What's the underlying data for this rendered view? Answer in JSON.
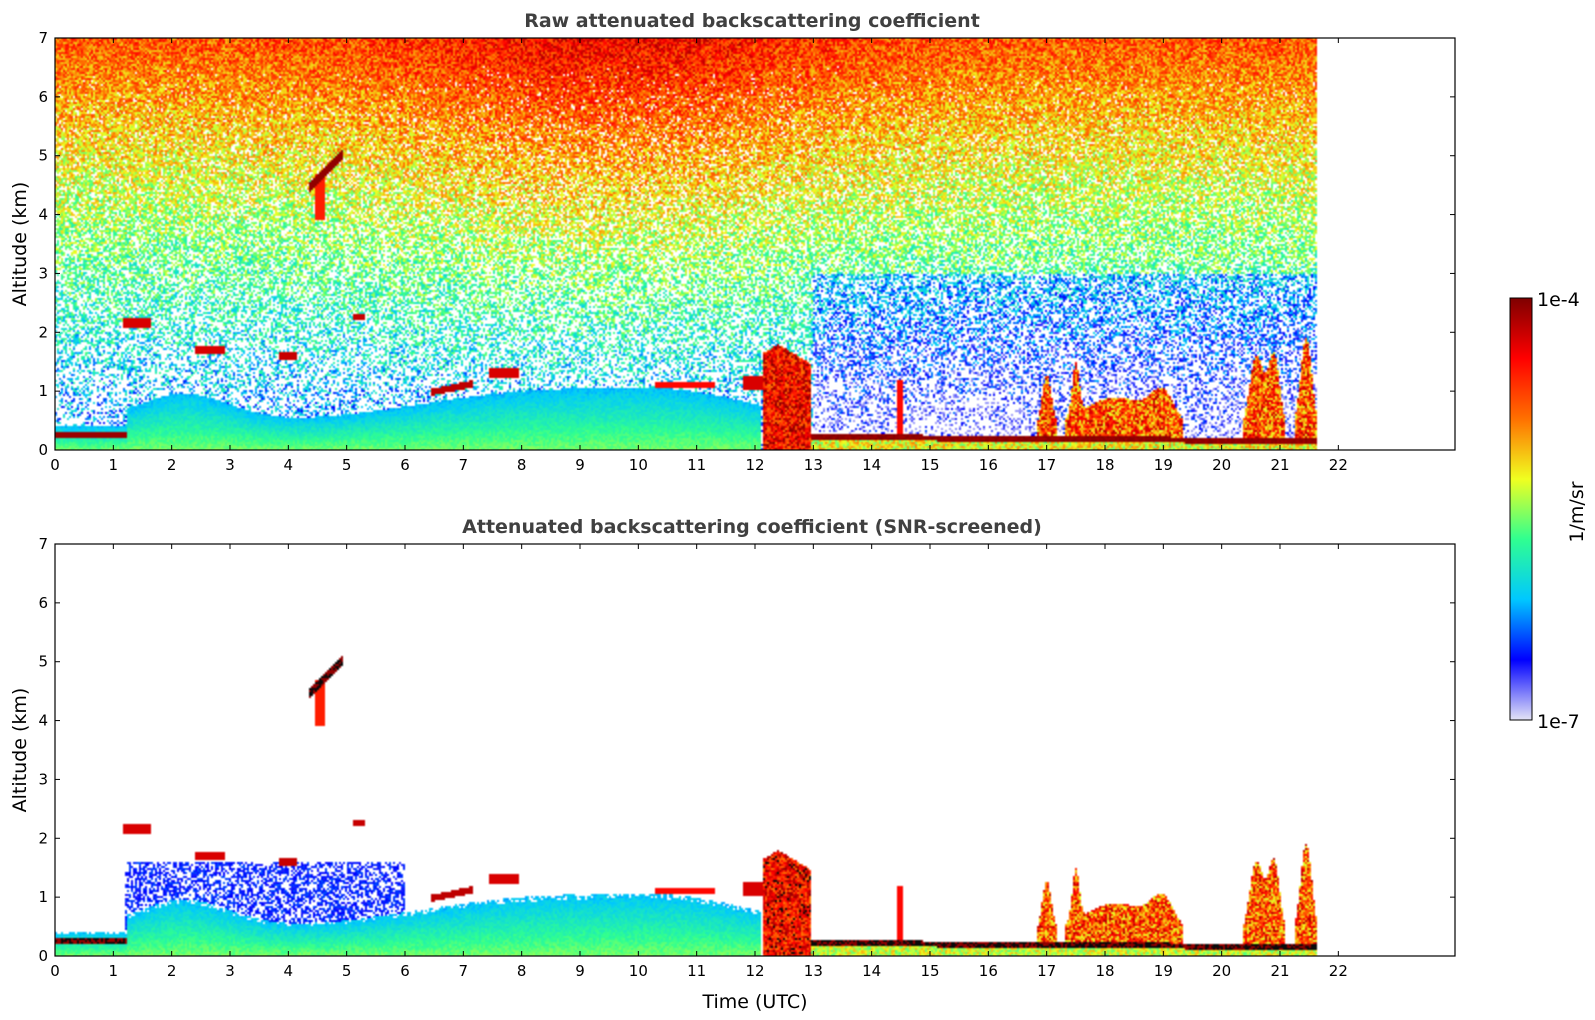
{
  "chart_data": [
    {
      "type": "heatmap",
      "title": "Raw attenuated backscattering coefficient",
      "xlabel": "",
      "ylabel": "Altitude (km)",
      "xlim": [
        0,
        24
      ],
      "ylim": [
        0,
        7
      ],
      "xticks": [
        "0",
        "1",
        "2",
        "3",
        "4",
        "5",
        "6",
        "7",
        "8",
        "9",
        "10",
        "11",
        "12",
        "13",
        "14",
        "15",
        "16",
        "17",
        "18",
        "19",
        "20",
        "21",
        "22"
      ],
      "yticks": [
        "0",
        "1",
        "2",
        "3",
        "4",
        "5",
        "6",
        "7"
      ],
      "data_end_time": 21.65,
      "features": [
        {
          "kind": "low_layer",
          "t0": 0,
          "t1": 1.25,
          "z": 0.25,
          "level": 0.97
        },
        {
          "kind": "aerosol_layer",
          "t0": 1.25,
          "t1": 12.1,
          "top_km": [
            1.0,
            0.45,
            0.55,
            0.7,
            0.9,
            1.1,
            1.0,
            0.7
          ]
        },
        {
          "kind": "cloud",
          "t": 4.65,
          "z": 4.75,
          "level": 0.99
        },
        {
          "kind": "deep_cloud",
          "t0": 12.15,
          "t1": 12.95,
          "top_km": 1.8
        },
        {
          "kind": "surface_cloud",
          "t0": 13.0,
          "t1": 21.65,
          "z": 0.15,
          "level": 0.97
        },
        {
          "kind": "cloud_patches",
          "t0": 16.8,
          "t1": 21.6,
          "top_km": 1.5
        }
      ]
    },
    {
      "type": "heatmap",
      "title": "Attenuated backscattering coefficient (SNR-screened)",
      "xlabel": "Time (UTC)",
      "ylabel": "Altitude (km)",
      "xlim": [
        0,
        24
      ],
      "ylim": [
        0,
        7
      ],
      "xticks": [
        "0",
        "1",
        "2",
        "3",
        "4",
        "5",
        "6",
        "7",
        "8",
        "9",
        "10",
        "11",
        "12",
        "13",
        "14",
        "15",
        "16",
        "17",
        "18",
        "19",
        "20",
        "21",
        "22"
      ],
      "yticks": [
        "0",
        "1",
        "2",
        "3",
        "4",
        "5",
        "6",
        "7"
      ],
      "data_end_time": 21.65,
      "screened": true
    }
  ],
  "colorbar": {
    "label": "1/m/sr",
    "max_label": "1e-4",
    "min_label": "1e-7",
    "colormap": [
      "#e4e4f6",
      "#0000ff",
      "#00c8ff",
      "#30ff90",
      "#f0ff20",
      "#ff7000",
      "#ff0000",
      "#7f0000"
    ]
  }
}
